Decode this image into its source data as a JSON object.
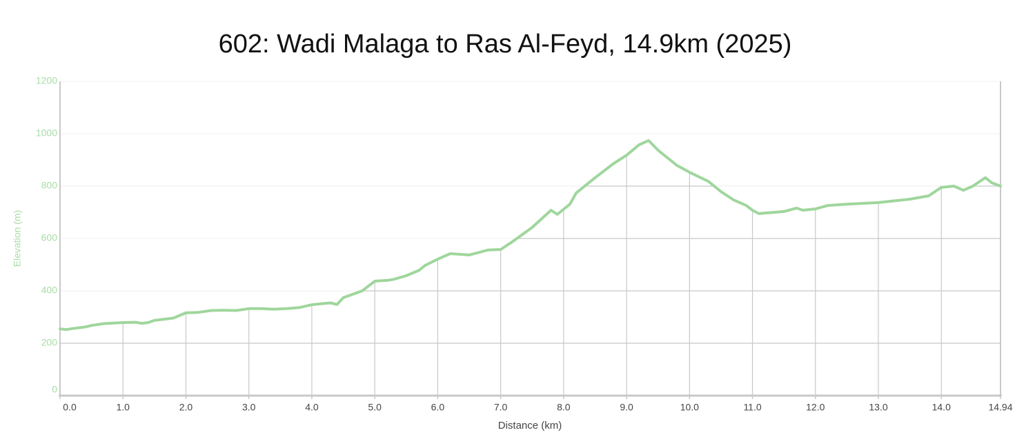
{
  "chart_data": {
    "type": "line",
    "title": "602: Wadi Malaga to Ras Al-Feyd, 14.9km (2025)",
    "x_label": "Distance (km)",
    "y_label": "Elevation (m)",
    "x": [
      0.0,
      0.1,
      0.2,
      0.4,
      0.5,
      0.7,
      1.0,
      1.2,
      1.3,
      1.4,
      1.5,
      1.8,
      2.0,
      2.2,
      2.4,
      2.6,
      2.8,
      3.0,
      3.2,
      3.4,
      3.6,
      3.8,
      4.0,
      4.2,
      4.3,
      4.4,
      4.5,
      4.8,
      5.0,
      5.2,
      5.3,
      5.5,
      5.7,
      5.8,
      6.0,
      6.2,
      6.5,
      6.8,
      7.0,
      7.2,
      7.5,
      7.8,
      7.9,
      8.1,
      8.2,
      8.5,
      8.8,
      9.0,
      9.2,
      9.35,
      9.5,
      9.8,
      10.0,
      10.3,
      10.5,
      10.7,
      10.9,
      11.0,
      11.1,
      11.5,
      11.7,
      11.8,
      12.0,
      12.2,
      12.5,
      13.0,
      13.5,
      13.8,
      14.0,
      14.2,
      14.35,
      14.5,
      14.7,
      14.8,
      14.94
    ],
    "series": [
      {
        "name": "Elevation",
        "color": "#9fd69c",
        "values": [
          255,
          252,
          256,
          262,
          268,
          275,
          279,
          280,
          276,
          279,
          287,
          296,
          316,
          318,
          325,
          326,
          325,
          332,
          332,
          330,
          332,
          336,
          347,
          352,
          354,
          348,
          374,
          400,
          437,
          440,
          444,
          458,
          478,
          497,
          521,
          542,
          537,
          556,
          558,
          590,
          642,
          708,
          692,
          731,
          774,
          832,
          887,
          918,
          958,
          974,
          937,
          879,
          853,
          818,
          779,
          747,
          726,
          708,
          695,
          703,
          716,
          708,
          713,
          726,
          731,
          737,
          750,
          763,
          795,
          800,
          784,
          800,
          832,
          813,
          800
        ]
      }
    ],
    "xlim": [
      0,
      14.94
    ],
    "xticks": [
      {
        "value": 0,
        "label": "0.0"
      },
      {
        "value": 1,
        "label": "1.0"
      },
      {
        "value": 2,
        "label": "2.0"
      },
      {
        "value": 3,
        "label": "3.0"
      },
      {
        "value": 4,
        "label": "4.0"
      },
      {
        "value": 5,
        "label": "5.0"
      },
      {
        "value": 6,
        "label": "6.0"
      },
      {
        "value": 7,
        "label": "7.0"
      },
      {
        "value": 8,
        "label": "8.0"
      },
      {
        "value": 9,
        "label": "9.0"
      },
      {
        "value": 10,
        "label": "10.0"
      },
      {
        "value": 11,
        "label": "11.0"
      },
      {
        "value": 12,
        "label": "12.0"
      },
      {
        "value": 13,
        "label": "13.0"
      },
      {
        "value": 14,
        "label": "14.0"
      },
      14.94
    ],
    "ylim": [
      0,
      1200
    ],
    "yticks": [
      0,
      200,
      400,
      600,
      800,
      1000,
      1200
    ],
    "grid": true
  }
}
